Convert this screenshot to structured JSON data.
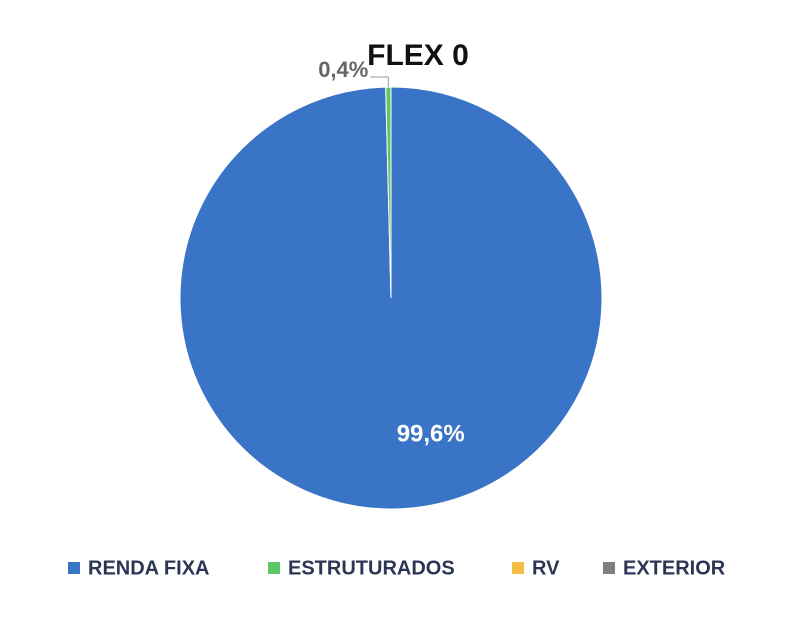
{
  "chart_data": {
    "type": "pie",
    "title": "FLEX 0",
    "categories": [
      "RENDA FIXA",
      "ESTRUTURADOS",
      "RV",
      "EXTERIOR"
    ],
    "values": [
      99.6,
      0.4,
      0,
      0
    ],
    "value_labels": [
      "99,6%",
      "0,4%",
      null,
      null
    ],
    "colors": [
      "#3a74c6",
      "#5cc765",
      "#f2c040",
      "#808080"
    ],
    "legend": "bottom"
  }
}
